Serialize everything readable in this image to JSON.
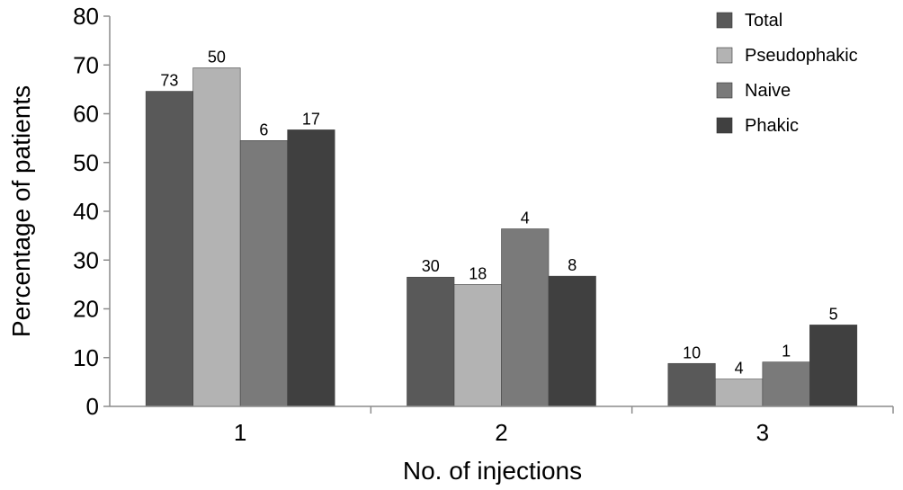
{
  "chart_data": {
    "type": "bar",
    "categories": [
      "1",
      "2",
      "3"
    ],
    "xlabel": "No. of injections",
    "ylabel": "Percentage of patients",
    "ylim": [
      0,
      80
    ],
    "yticks": [
      0,
      10,
      20,
      30,
      40,
      50,
      60,
      70,
      80
    ],
    "grid": false,
    "legend_position": "top-right",
    "series": [
      {
        "name": "Total",
        "color": "#595959",
        "values": [
          64.6,
          26.5,
          8.8
        ],
        "data_labels": [
          "73",
          "30",
          "10"
        ]
      },
      {
        "name": "Pseudophakic",
        "color": "#b3b3b3",
        "values": [
          69.4,
          25.0,
          5.6
        ],
        "data_labels": [
          "50",
          "18",
          "4"
        ]
      },
      {
        "name": "Naive",
        "color": "#7a7a7a",
        "values": [
          54.5,
          36.4,
          9.1
        ],
        "data_labels": [
          "6",
          "4",
          "1"
        ]
      },
      {
        "name": "Phakic",
        "color": "#404040",
        "values": [
          56.7,
          26.7,
          16.7
        ],
        "data_labels": [
          "17",
          "8",
          "5"
        ]
      }
    ]
  }
}
